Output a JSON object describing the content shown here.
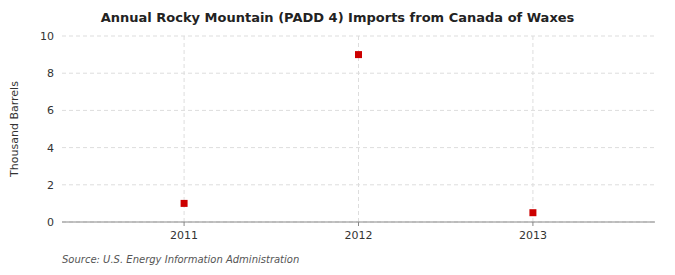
{
  "chart_data": {
    "type": "scatter",
    "title": "Annual Rocky Mountain (PADD 4) Imports from Canada of Waxes",
    "ylabel": "Thousand Barrels",
    "source": "Source: U.S. Energy Information Administration",
    "x": [
      2011,
      2012,
      2013
    ],
    "values": [
      1,
      9,
      0.5
    ],
    "color": "#CC0000",
    "marker": "square",
    "xlim": [
      2010.3,
      2013.7
    ],
    "xticks": [
      2011,
      2012,
      2013
    ],
    "ylim": [
      0,
      10
    ],
    "yticks": [
      0,
      2,
      4,
      6,
      8,
      10
    ],
    "grid": true
  }
}
